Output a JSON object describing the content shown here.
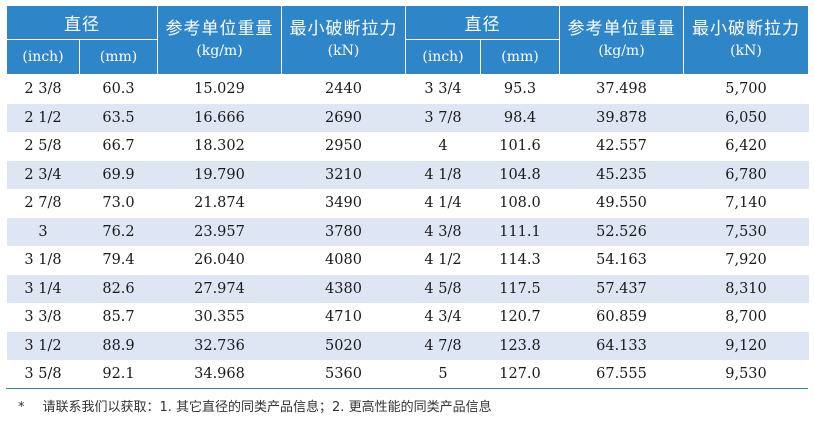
{
  "headers": {
    "diameter": "直径",
    "unit_weight": "参考单位重量",
    "unit_weight_unit": "(kg/m)",
    "min_break": "最小破断拉力",
    "min_break_unit": "(kN)",
    "inch": "(inch)",
    "mm": "(mm)"
  },
  "rows": [
    [
      "2 3/8",
      "60.3",
      "15.029",
      "2440",
      "3 3/4",
      "95.3",
      "37.498",
      "5,700"
    ],
    [
      "2 1/2",
      "63.5",
      "16.666",
      "2690",
      "3 7/8",
      "98.4",
      "39.878",
      "6,050"
    ],
    [
      "2 5/8",
      "66.7",
      "18.302",
      "2950",
      "4",
      "101.6",
      "42.557",
      "6,420"
    ],
    [
      "2 3/4",
      "69.9",
      "19.790",
      "3210",
      "4 1/8",
      "104.8",
      "45.235",
      "6,780"
    ],
    [
      "2 7/8",
      "73.0",
      "21.874",
      "3490",
      "4 1/4",
      "108.0",
      "49.550",
      "7,140"
    ],
    [
      "3",
      "76.2",
      "23.957",
      "3780",
      "4 3/8",
      "111.1",
      "52.526",
      "7,530"
    ],
    [
      "3 1/8",
      "79.4",
      "26.040",
      "4080",
      "4 1/2",
      "114.3",
      "54.163",
      "7,920"
    ],
    [
      "3 1/4",
      "82.6",
      "27.974",
      "4380",
      "4 5/8",
      "117.5",
      "57.437",
      "8,310"
    ],
    [
      "3 3/8",
      "85.7",
      "30.355",
      "4710",
      "4 3/4",
      "120.7",
      "60.859",
      "8,700"
    ],
    [
      "3 1/2",
      "88.9",
      "32.736",
      "5020",
      "4 7/8",
      "123.8",
      "64.133",
      "9,120"
    ],
    [
      "3 5/8",
      "92.1",
      "34.968",
      "5360",
      "5",
      "127.0",
      "67.555",
      "9,530"
    ]
  ],
  "footnote": {
    "star": "*",
    "text": "请联系我们以获取：1. 其它直径的同类产品信息；2. 更高性能的同类产品信息"
  }
}
